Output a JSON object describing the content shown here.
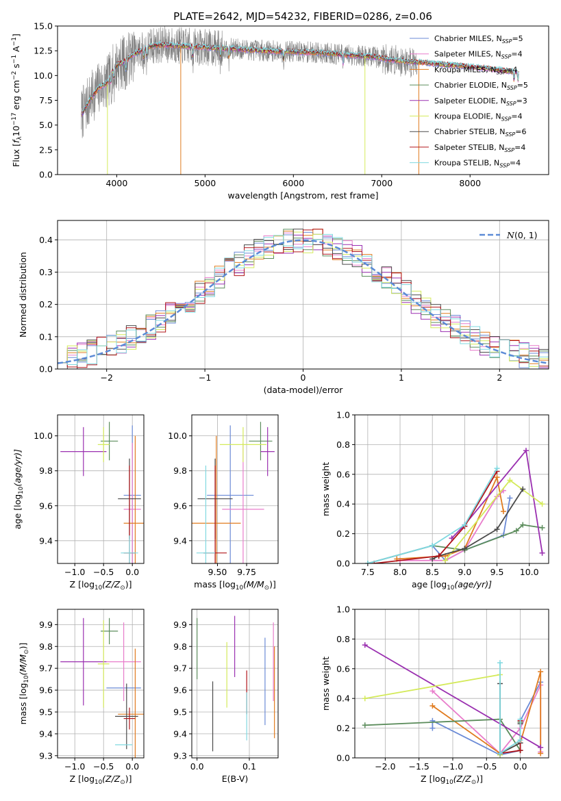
{
  "figure": {
    "title": "PLATE=2642, MJD=54232, FIBERID=0286, z=0.06"
  },
  "legend_entries": [
    {
      "label": "Chabrier MILES, N$_{SSP}$=5",
      "text": "Chabrier MILES, N",
      "sub": "SSP",
      "suffix": "=5",
      "color": "#6a8ad6"
    },
    {
      "label": "Salpeter MILES, N$_{SSP}$=4",
      "text": "Salpeter MILES, N",
      "sub": "SSP",
      "suffix": "=4",
      "color": "#e87ccb"
    },
    {
      "label": "Kroupa MILES, N$_{SSP}$=4",
      "text": "Kroupa MILES, N",
      "sub": "SSP",
      "suffix": "=4",
      "color": "#e07b1f"
    },
    {
      "label": "Chabrier ELODIE, N$_{SSP}$=5",
      "text": "Chabrier ELODIE, N",
      "sub": "SSP",
      "suffix": "=5",
      "color": "#5b8c5b"
    },
    {
      "label": "Salpeter ELODIE, N$_{SSP}$=3",
      "text": "Salpeter ELODIE, N",
      "sub": "SSP",
      "suffix": "=3",
      "color": "#9a2fb0"
    },
    {
      "label": "Kroupa ELODIE, N$_{SSP}$=4",
      "text": "Kroupa ELODIE, N",
      "sub": "SSP",
      "suffix": "=4",
      "color": "#d4ea5a"
    },
    {
      "label": "Chabrier STELIB, N$_{SSP}$=6",
      "text": "Chabrier STELIB, N",
      "sub": "SSP",
      "suffix": "=6",
      "color": "#4a4a4a"
    },
    {
      "label": "Salpeter STELIB, N$_{SSP}$=4",
      "text": "Salpeter STELIB, N",
      "sub": "SSP",
      "suffix": "=4",
      "color": "#b0141a"
    },
    {
      "label": "Kroupa STELIB, N$_{SSP}$=4",
      "text": "Kroupa STELIB, N",
      "sub": "SSP",
      "suffix": "=4",
      "color": "#7fd8e0"
    }
  ],
  "chart_data": [
    {
      "id": "spectrum",
      "type": "line",
      "xlabel": "wavelength [Angstrom, rest frame]",
      "ylabel_parts": {
        "a": "Flux [",
        "b": "f",
        "b_sub": "λ",
        "c": "10",
        "c_sup": "−17",
        "d": " erg cm",
        "d_sup": "−2",
        "e": " s",
        "e_sup": "−1",
        "f": " A",
        "f_sup": "−1",
        "g": "]"
      },
      "xlim": [
        3330,
        8890
      ],
      "ylim": [
        0,
        15
      ],
      "xticks": [
        4000,
        5000,
        6000,
        7000,
        8000
      ],
      "yticks": [
        0.0,
        2.5,
        5.0,
        7.5,
        10.0,
        12.5,
        15.0
      ],
      "xtick_labels": [
        "4000",
        "5000",
        "6000",
        "7000",
        "8000"
      ],
      "ytick_labels": [
        "0.0",
        "2.5",
        "5.0",
        "7.5",
        "10.0",
        "12.5",
        "15.0"
      ],
      "data_color": "#808080",
      "model_color": "#7fd8e0",
      "continuum_x": [
        3600,
        3700,
        3800,
        3900,
        3950,
        4000,
        4100,
        4200,
        4300,
        4400,
        4500,
        4700,
        4900,
        5100,
        5300,
        5500,
        5700,
        6000,
        6300,
        6600,
        6900,
        7100,
        7300,
        7500,
        7700,
        7900,
        8100,
        8300,
        8500
      ],
      "continuum_y": [
        6.0,
        7.6,
        8.8,
        9.3,
        10.4,
        11.0,
        11.5,
        12.2,
        12.6,
        13.0,
        13.1,
        13.0,
        12.9,
        12.8,
        12.7,
        12.6,
        12.5,
        12.4,
        12.3,
        12.1,
        11.9,
        11.6,
        11.4,
        11.3,
        11.1,
        11.0,
        10.8,
        10.6,
        10.4
      ]
    },
    {
      "id": "residuals",
      "type": "histogram",
      "xlabel": "(data-model)/error",
      "ylabel": "Normed distribution",
      "xlim": [
        -2.5,
        2.5
      ],
      "ylim": [
        0,
        0.46
      ],
      "xticks": [
        -2,
        -1,
        0,
        1,
        2
      ],
      "yticks": [
        0.0,
        0.1,
        0.2,
        0.3,
        0.4
      ],
      "xtick_labels": [
        "−2",
        "−1",
        "0",
        "1",
        "2"
      ],
      "ytick_labels": [
        "0.0",
        "0.1",
        "0.2",
        "0.3",
        "0.4"
      ],
      "bin_width": 0.1,
      "reference_curve": {
        "name_text": "N",
        "name_suffix": "(0, 1)",
        "color": "#5b8ad6",
        "style": "dashed"
      }
    },
    {
      "id": "age_vs_Z",
      "type": "scatter",
      "xlabel_parts": {
        "a": "Z [log",
        "a_sub": "10",
        "b": "(Z/Z",
        "b_sub": "⊙",
        "c": ")]"
      },
      "ylabel_parts": {
        "a": "age  [log",
        "a_sub": "10",
        "b": "(age/yr)]"
      },
      "xlim": [
        -1.3,
        0.2
      ],
      "ylim": [
        9.27,
        10.12
      ],
      "xticks": [
        -1.0,
        -0.5,
        0.0
      ],
      "yticks": [
        9.4,
        9.6,
        9.8,
        10.0
      ],
      "xtick_labels": [
        "−1.0",
        "−0.5",
        "0.0"
      ],
      "ytick_labels": [
        "9.4",
        "9.6",
        "9.8",
        "10.0"
      ],
      "points": [
        {
          "x": 0.0,
          "y": 9.66,
          "xerr": 0.15,
          "yerr": 0.4,
          "series": 0
        },
        {
          "x": 0.0,
          "y": 9.58,
          "xerr": 0.15,
          "yerr": 0.38,
          "series": 1
        },
        {
          "x": 0.05,
          "y": 9.5,
          "xerr": 0.2,
          "yerr": 0.5,
          "series": 2
        },
        {
          "x": -0.4,
          "y": 9.97,
          "xerr": 0.15,
          "yerr": 0.11,
          "series": 3
        },
        {
          "x": -0.85,
          "y": 9.91,
          "xerr": 0.4,
          "yerr": 0.14,
          "series": 4
        },
        {
          "x": -0.5,
          "y": 9.95,
          "xerr": 0.1,
          "yerr": 0.1,
          "series": 5
        },
        {
          "x": -0.05,
          "y": 9.64,
          "xerr": 0.2,
          "yerr": 0.23,
          "series": 6
        },
        {
          "x": -0.05,
          "y": 9.33,
          "xerr": 0.1,
          "yerr": 0.5,
          "series": 7
        },
        {
          "x": -0.05,
          "y": 9.33,
          "xerr": 0.15,
          "yerr": 0.1,
          "series": 8
        }
      ]
    },
    {
      "id": "age_vs_mass",
      "type": "scatter",
      "xlabel_parts": {
        "a": "mass [log",
        "a_sub": "10",
        "b": "(M/M",
        "b_sub": "⊙",
        "c": ")]"
      },
      "xlim": [
        9.28,
        10.02
      ],
      "ylim": [
        9.27,
        10.12
      ],
      "xticks": [
        9.5,
        9.75
      ],
      "yticks": [
        9.4,
        9.6,
        9.8,
        10.0
      ],
      "xtick_labels": [
        "9.50",
        "9.75"
      ],
      "ytick_labels": [
        "9.4",
        "9.6",
        "9.8",
        "10.0"
      ],
      "points": [
        {
          "x": 9.61,
          "y": 9.66,
          "xerr": 0.2,
          "yerr": 0.4,
          "series": 0
        },
        {
          "x": 9.72,
          "y": 9.58,
          "xerr": 0.18,
          "yerr": 0.38,
          "series": 1
        },
        {
          "x": 9.49,
          "y": 9.5,
          "xerr": 0.21,
          "yerr": 0.5,
          "series": 2
        },
        {
          "x": 9.87,
          "y": 9.97,
          "xerr": 0.1,
          "yerr": 0.11,
          "series": 3
        },
        {
          "x": 9.93,
          "y": 9.91,
          "xerr": 0.06,
          "yerr": 0.14,
          "series": 4
        },
        {
          "x": 9.72,
          "y": 9.95,
          "xerr": 0.2,
          "yerr": 0.1,
          "series": 5
        },
        {
          "x": 9.48,
          "y": 9.64,
          "xerr": 0.15,
          "yerr": 0.23,
          "series": 6
        },
        {
          "x": 9.48,
          "y": 9.33,
          "xerr": 0.1,
          "yerr": 0.5,
          "series": 7
        },
        {
          "x": 9.4,
          "y": 9.33,
          "xerr": 0.08,
          "yerr": 0.5,
          "series": 8
        }
      ]
    },
    {
      "id": "mass_weight_vs_age",
      "type": "line",
      "xlabel_parts": {
        "a": "age  [log",
        "a_sub": "10",
        "b": "(age/yr)]"
      },
      "ylabel": "mass weight",
      "xlim": [
        7.3,
        10.3
      ],
      "ylim": [
        0,
        1
      ],
      "xticks": [
        7.5,
        8.0,
        8.5,
        9.0,
        9.5,
        10.0
      ],
      "yticks": [
        0.0,
        0.2,
        0.4,
        0.6,
        0.8,
        1.0
      ],
      "xtick_labels": [
        "7.5",
        "8.0",
        "8.5",
        "9.0",
        "9.5",
        "10.0"
      ],
      "ytick_labels": [
        "0.0",
        "0.2",
        "0.4",
        "0.6",
        "0.8",
        "1.0"
      ],
      "series": [
        {
          "series": 0,
          "x": [
            7.5,
            8.5,
            8.7,
            9.0,
            9.6,
            9.7
          ],
          "y": [
            0.0,
            0.12,
            0.02,
            0.09,
            0.19,
            0.44
          ]
        },
        {
          "series": 1,
          "x": [
            8.0,
            8.7,
            9.0,
            9.5,
            9.6
          ],
          "y": [
            0.02,
            0.02,
            0.09,
            0.45,
            0.49
          ]
        },
        {
          "series": 2,
          "x": [
            7.95,
            8.7,
            9.0,
            9.5,
            9.6
          ],
          "y": [
            0.03,
            0.05,
            0.1,
            0.58,
            0.35
          ]
        },
        {
          "series": 3,
          "x": [
            7.5,
            8.5,
            9.0,
            9.8,
            9.9,
            10.2
          ],
          "y": [
            0.0,
            0.12,
            0.09,
            0.22,
            0.26,
            0.24
          ]
        },
        {
          "series": 4,
          "x": [
            8.8,
            9.0,
            9.95,
            10.2
          ],
          "y": [
            0.17,
            0.26,
            0.76,
            0.07
          ]
        },
        {
          "series": 5,
          "x": [
            8.7,
            9.7,
            10.2
          ],
          "y": [
            0.02,
            0.56,
            0.4
          ]
        },
        {
          "series": 6,
          "x": [
            8.5,
            8.6,
            9.0,
            9.5,
            9.9
          ],
          "y": [
            0.03,
            0.05,
            0.1,
            0.23,
            0.5
          ]
        },
        {
          "series": 7,
          "x": [
            7.6,
            8.6,
            9.0,
            9.5
          ],
          "y": [
            0.0,
            0.05,
            0.25,
            0.62
          ]
        },
        {
          "series": 8,
          "x": [
            7.5,
            8.5,
            9.0,
            9.5
          ],
          "y": [
            0.0,
            0.12,
            0.26,
            0.64
          ]
        }
      ]
    },
    {
      "id": "mass_vs_Z",
      "type": "scatter",
      "xlabel_parts": {
        "a": "Z [log",
        "a_sub": "10",
        "b": "(Z/Z",
        "b_sub": "⊙",
        "c": ")]"
      },
      "ylabel_parts": {
        "a": "mass [log",
        "a_sub": "10",
        "b": "(M/M",
        "b_sub": "⊙",
        "c": ")]"
      },
      "xlim": [
        -1.3,
        0.2
      ],
      "ylim": [
        9.29,
        9.97
      ],
      "xticks": [
        -1.0,
        -0.5,
        0.0
      ],
      "yticks": [
        9.3,
        9.4,
        9.5,
        9.6,
        9.7,
        9.8,
        9.9
      ],
      "xtick_labels": [
        "−1.0",
        "−0.5",
        "0.0"
      ],
      "ytick_labels": [
        "9.3",
        "9.4",
        "9.5",
        "9.6",
        "9.7",
        "9.8",
        "9.9"
      ],
      "points": [
        {
          "x": -0.15,
          "y": 9.61,
          "xerr": 0.3,
          "yerr": 0.0,
          "series": 0
        },
        {
          "x": -0.15,
          "y": 9.73,
          "xerr": 0.3,
          "yerr": 0.18,
          "series": 1
        },
        {
          "x": 0.05,
          "y": 9.49,
          "xerr": 0.3,
          "yerr": 0.3,
          "series": 2
        },
        {
          "x": -0.4,
          "y": 9.87,
          "xerr": 0.15,
          "yerr": 0.06,
          "series": 3
        },
        {
          "x": -0.85,
          "y": 9.73,
          "xerr": 0.4,
          "yerr": 0.2,
          "series": 4
        },
        {
          "x": -0.5,
          "y": 9.72,
          "xerr": 0.1,
          "yerr": 0.2,
          "series": 5
        },
        {
          "x": -0.1,
          "y": 9.48,
          "xerr": 0.2,
          "yerr": 0.15,
          "series": 6
        },
        {
          "x": -0.05,
          "y": 9.47,
          "xerr": 0.1,
          "yerr": 0.05,
          "series": 7
        },
        {
          "x": -0.15,
          "y": 9.35,
          "xerr": 0.15,
          "yerr": 0.0,
          "series": 8
        }
      ]
    },
    {
      "id": "mass_vs_EBV",
      "type": "scatter",
      "xlabel": "E(B-V)",
      "xlim": [
        -0.01,
        0.155
      ],
      "ylim": [
        9.29,
        9.97
      ],
      "xticks": [
        0.0,
        0.1
      ],
      "yticks": [
        9.3,
        9.4,
        9.5,
        9.6,
        9.7,
        9.8,
        9.9
      ],
      "xtick_labels": [
        "0.0",
        "0.1"
      ],
      "ytick_labels": [
        "9.3",
        "9.4",
        "9.5",
        "9.6",
        "9.7",
        "9.8",
        "9.9"
      ],
      "points": [
        {
          "x": 0.13,
          "y": 9.64,
          "xerr": 0,
          "yerr": 0.2,
          "series": 0
        },
        {
          "x": 0.146,
          "y": 9.73,
          "xerr": 0,
          "yerr": 0.18,
          "series": 1
        },
        {
          "x": 0.148,
          "y": 9.59,
          "xerr": 0,
          "yerr": 0.21,
          "series": 2
        },
        {
          "x": 0.0,
          "y": 9.79,
          "xerr": 0,
          "yerr": 0.14,
          "series": 3
        },
        {
          "x": 0.072,
          "y": 9.8,
          "xerr": 0,
          "yerr": 0.14,
          "series": 4
        },
        {
          "x": 0.057,
          "y": 9.67,
          "xerr": 0,
          "yerr": 0.15,
          "series": 5
        },
        {
          "x": 0.03,
          "y": 9.48,
          "xerr": 0,
          "yerr": 0.16,
          "series": 6
        },
        {
          "x": 0.095,
          "y": 9.59,
          "xerr": 0,
          "yerr": 0.1,
          "series": 7
        },
        {
          "x": 0.095,
          "y": 9.48,
          "xerr": 0,
          "yerr": 0.11,
          "series": 8
        }
      ]
    },
    {
      "id": "mass_weight_vs_Z",
      "type": "line",
      "xlabel_parts": {
        "a": "Z [log",
        "a_sub": "10",
        "b": "(Z/Z",
        "b_sub": "⊙",
        "c": ")]"
      },
      "ylabel": "mass weight",
      "xlim": [
        -2.45,
        0.42
      ],
      "ylim": [
        0,
        1
      ],
      "xticks": [
        -2.0,
        -1.5,
        -1.0,
        -0.5,
        0.0
      ],
      "yticks": [
        0.0,
        0.2,
        0.4,
        0.6,
        0.8,
        1.0
      ],
      "xtick_labels": [
        "−2.0",
        "−1.5",
        "−1.0",
        "−0.5",
        "0.0"
      ],
      "ytick_labels": [
        "0.0",
        "0.2",
        "0.4",
        "0.6",
        "0.8",
        "1.0"
      ],
      "series": [
        {
          "series": 0,
          "x": [
            -1.3,
            -1.3,
            -0.3,
            0.0,
            0.0,
            0.3
          ],
          "y": [
            0.2,
            0.25,
            0.02,
            0.05,
            0.25,
            0.51
          ]
        },
        {
          "series": 1,
          "x": [
            -1.3,
            -0.3,
            0.0,
            0.3,
            0.3
          ],
          "y": [
            0.45,
            0.03,
            0.2,
            0.49,
            0.04
          ]
        },
        {
          "series": 2,
          "x": [
            -1.3,
            -0.3,
            0.0,
            0.3,
            0.3
          ],
          "y": [
            0.35,
            0.03,
            0.1,
            0.58,
            0.03
          ]
        },
        {
          "series": 3,
          "x": [
            -2.3,
            -0.3,
            0.0,
            0.0
          ],
          "y": [
            0.22,
            0.26,
            0.05,
            0.24
          ]
        },
        {
          "series": 4,
          "x": [
            -2.3,
            0.3
          ],
          "y": [
            0.76,
            0.07
          ]
        },
        {
          "series": 5,
          "x": [
            -2.3,
            -0.3,
            -0.3
          ],
          "y": [
            0.4,
            0.56,
            0.02
          ]
        },
        {
          "series": 6,
          "x": [
            -0.3,
            -0.3,
            0.0,
            0.0
          ],
          "y": [
            0.5,
            0.03,
            0.1,
            0.23
          ]
        },
        {
          "series": 7,
          "x": [
            -0.3,
            0.0,
            0.0
          ],
          "y": [
            0.03,
            0.05,
            0.25
          ]
        },
        {
          "series": 8,
          "x": [
            -0.3,
            -0.3,
            0.0,
            0.0
          ],
          "y": [
            0.64,
            0.03,
            0.12,
            0.26
          ]
        }
      ]
    }
  ]
}
